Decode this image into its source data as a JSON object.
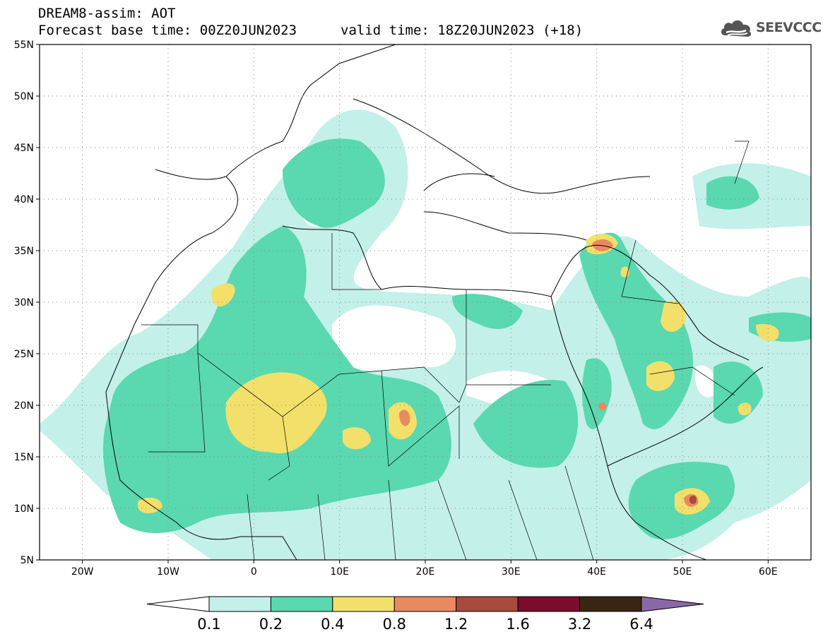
{
  "header": {
    "title": "DREAM8-assim: AOT",
    "base_time": "Forecast base time: 00Z20JUN2023",
    "valid_time": "valid time: 18Z20JUN2023 (+18)"
  },
  "logo": {
    "text": "SEEVCCC",
    "icon": "cloud-icon"
  },
  "map": {
    "lon_range": [
      -25,
      65
    ],
    "lat_range": [
      5,
      55
    ],
    "lat_ticks": [
      {
        "value": 55,
        "label": "55N"
      },
      {
        "value": 50,
        "label": "50N"
      },
      {
        "value": 45,
        "label": "45N"
      },
      {
        "value": 40,
        "label": "40N"
      },
      {
        "value": 35,
        "label": "35N"
      },
      {
        "value": 30,
        "label": "30N"
      },
      {
        "value": 25,
        "label": "25N"
      },
      {
        "value": 20,
        "label": "20N"
      },
      {
        "value": 15,
        "label": "15N"
      },
      {
        "value": 10,
        "label": "10N"
      },
      {
        "value": 5,
        "label": "5N"
      }
    ],
    "lon_ticks": [
      {
        "value": -20,
        "label": "20W"
      },
      {
        "value": -10,
        "label": "10W"
      },
      {
        "value": 0,
        "label": "0"
      },
      {
        "value": 10,
        "label": "10E"
      },
      {
        "value": 20,
        "label": "20E"
      },
      {
        "value": 30,
        "label": "30E"
      },
      {
        "value": 40,
        "label": "40E"
      },
      {
        "value": 50,
        "label": "50E"
      },
      {
        "value": 60,
        "label": "60E"
      }
    ]
  },
  "colorbar": {
    "levels": [
      "0.1",
      "0.2",
      "0.4",
      "0.8",
      "1.2",
      "1.6",
      "3.2",
      "6.4"
    ],
    "colors": [
      "#ffffff",
      "#c3f0e8",
      "#5ad8b0",
      "#f2e06a",
      "#e88a60",
      "#a84a3c",
      "#7a0c2c",
      "#3a2414",
      "#8a68a8"
    ]
  }
}
